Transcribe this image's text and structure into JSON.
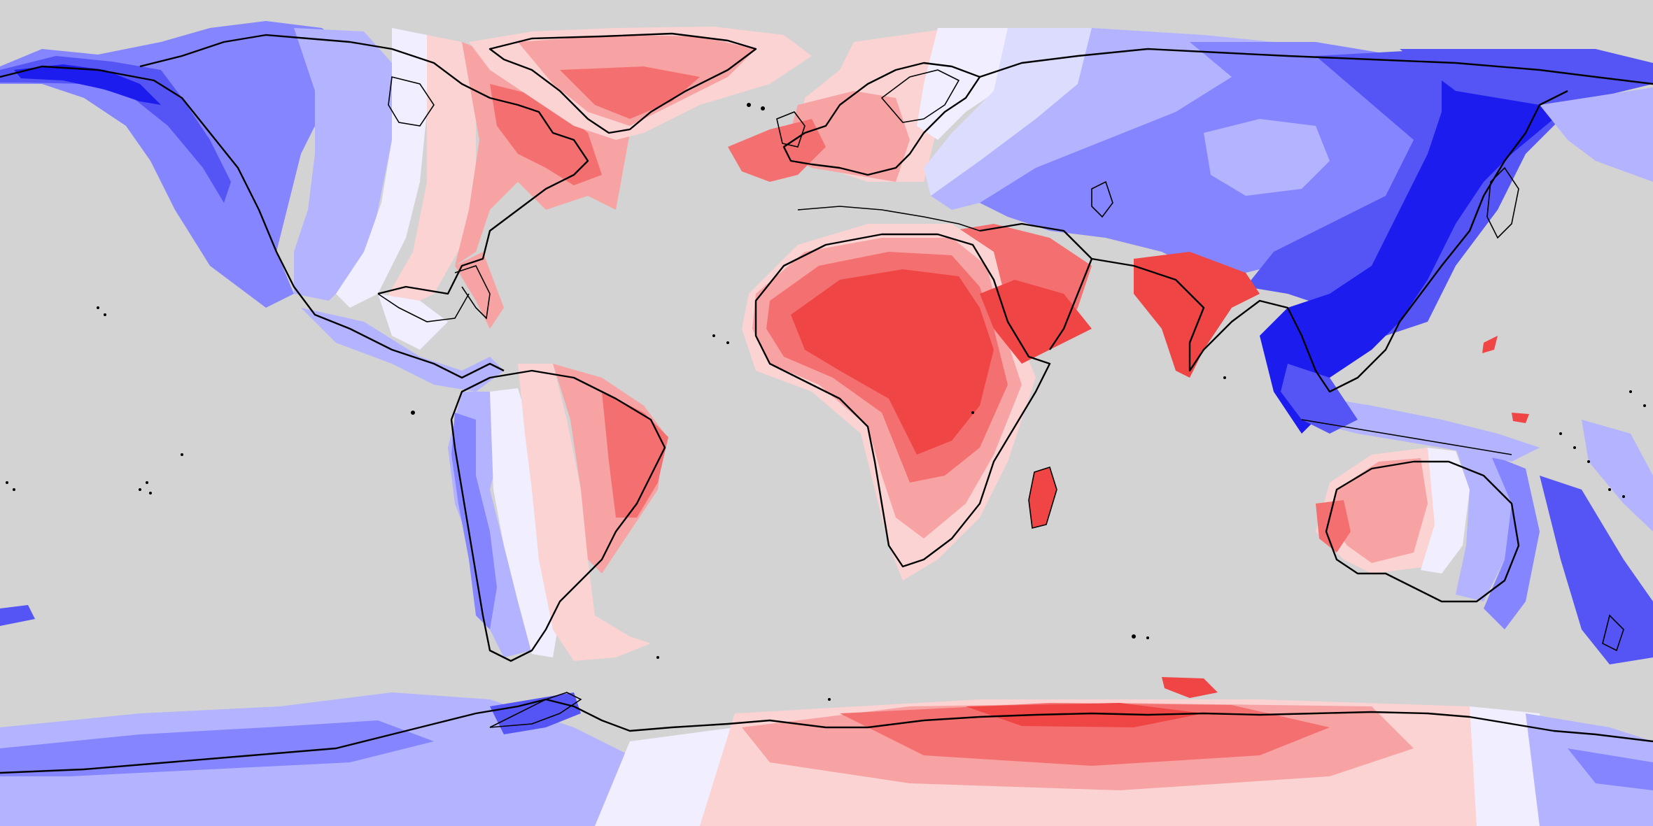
{
  "map": {
    "projection": "equirectangular",
    "colors": {
      "ocean": "#d3d3d3",
      "coastline": "#000000",
      "red_strong": "#f04545",
      "red_medium": "#f47070",
      "red_light": "#f7a3a3",
      "red_pale": "#fbd3d3",
      "neutral": "#f1eeff",
      "blue_pale": "#dcdcff",
      "blue_light": "#b3b3ff",
      "blue_medium": "#8585ff",
      "blue_strong": "#5555f5",
      "blue_deep": "#1c1cef"
    }
  }
}
